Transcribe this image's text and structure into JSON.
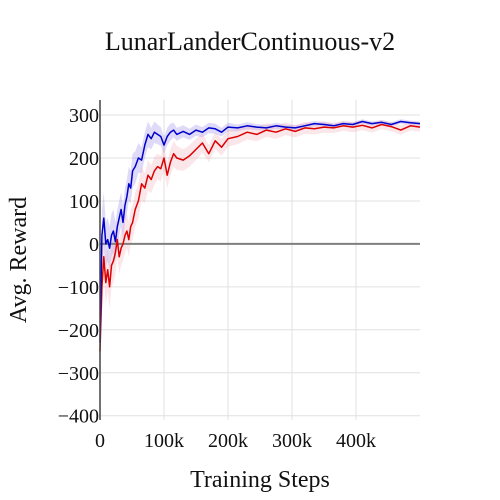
{
  "chart_data": {
    "type": "line",
    "title": "LunarLanderContinuous-v2",
    "xlabel": "Training Steps",
    "ylabel": "Avg. Reward",
    "xlim": [
      0,
      500000
    ],
    "ylim": [
      -410,
      335
    ],
    "x_ticks": [
      0,
      100000,
      200000,
      300000,
      400000
    ],
    "x_tick_labels": [
      "0",
      "100k",
      "200k",
      "300k",
      "400k"
    ],
    "y_ticks": [
      -400,
      -300,
      -200,
      -100,
      0,
      100,
      200,
      300
    ],
    "y_tick_labels": [
      "−400",
      "−300",
      "−200",
      "−100",
      "0",
      "100",
      "200",
      "300"
    ],
    "grid": true,
    "zero_line": true,
    "series": [
      {
        "color": "#0000cc",
        "band_color": "#8c7ae6",
        "x": [
          0,
          3000,
          6000,
          9000,
          12000,
          15000,
          18000,
          21000,
          24000,
          27000,
          30000,
          33000,
          36000,
          39000,
          42000,
          45000,
          48000,
          51000,
          55000,
          60000,
          65000,
          70000,
          75000,
          80000,
          85000,
          90000,
          95000,
          100000,
          105000,
          110000,
          115000,
          120000,
          130000,
          140000,
          150000,
          160000,
          170000,
          180000,
          190000,
          200000,
          215000,
          230000,
          245000,
          260000,
          275000,
          290000,
          305000,
          320000,
          335000,
          350000,
          365000,
          380000,
          395000,
          410000,
          425000,
          440000,
          455000,
          470000,
          485000,
          500000
        ],
        "y": [
          -230,
          20,
          60,
          0,
          10,
          -10,
          20,
          30,
          5,
          40,
          60,
          80,
          50,
          90,
          110,
          140,
          130,
          170,
          180,
          200,
          195,
          230,
          255,
          245,
          260,
          255,
          250,
          230,
          250,
          260,
          265,
          255,
          262,
          255,
          265,
          260,
          270,
          268,
          260,
          272,
          270,
          275,
          272,
          270,
          275,
          272,
          270,
          275,
          280,
          278,
          275,
          280,
          278,
          285,
          280,
          283,
          278,
          285,
          282,
          280
        ],
        "lower": [
          -260,
          -40,
          0,
          -50,
          -40,
          -60,
          -30,
          -20,
          -40,
          0,
          20,
          40,
          10,
          50,
          70,
          100,
          95,
          130,
          140,
          165,
          165,
          200,
          225,
          220,
          235,
          232,
          228,
          210,
          230,
          240,
          248,
          240,
          248,
          242,
          252,
          248,
          258,
          256,
          250,
          262,
          262,
          267,
          265,
          263,
          268,
          266,
          264,
          269,
          274,
          272,
          270,
          275,
          273,
          280,
          275,
          278,
          273,
          280,
          277,
          275
        ],
        "upper": [
          -200,
          80,
          120,
          50,
          60,
          40,
          70,
          80,
          50,
          80,
          100,
          120,
          90,
          130,
          150,
          180,
          170,
          210,
          215,
          235,
          225,
          260,
          285,
          270,
          285,
          278,
          272,
          250,
          270,
          280,
          282,
          270,
          276,
          268,
          278,
          272,
          282,
          280,
          270,
          282,
          278,
          283,
          279,
          277,
          282,
          278,
          276,
          281,
          286,
          284,
          280,
          285,
          283,
          290,
          285,
          288,
          283,
          290,
          287,
          285
        ]
      },
      {
        "color": "#dd0000",
        "band_color": "#f2a6b3",
        "x": [
          0,
          3000,
          6000,
          9000,
          12000,
          15000,
          18000,
          21000,
          24000,
          27000,
          30000,
          33000,
          36000,
          39000,
          42000,
          45000,
          48000,
          51000,
          55000,
          60000,
          65000,
          70000,
          75000,
          80000,
          85000,
          90000,
          95000,
          100000,
          105000,
          110000,
          115000,
          120000,
          130000,
          140000,
          150000,
          160000,
          170000,
          180000,
          190000,
          200000,
          215000,
          230000,
          245000,
          260000,
          275000,
          290000,
          305000,
          320000,
          335000,
          350000,
          365000,
          380000,
          395000,
          410000,
          425000,
          440000,
          455000,
          470000,
          485000,
          500000
        ],
        "y": [
          -250,
          -100,
          -30,
          -90,
          -60,
          -100,
          -50,
          -40,
          -20,
          10,
          -30,
          -10,
          0,
          20,
          30,
          10,
          40,
          50,
          80,
          100,
          140,
          130,
          160,
          150,
          170,
          180,
          175,
          200,
          160,
          190,
          210,
          200,
          195,
          205,
          220,
          235,
          210,
          240,
          225,
          245,
          250,
          260,
          255,
          265,
          260,
          268,
          262,
          270,
          268,
          272,
          270,
          275,
          272,
          276,
          270,
          278,
          273,
          265,
          275,
          272
        ],
        "lower": [
          -280,
          -160,
          -80,
          -140,
          -110,
          -150,
          -100,
          -90,
          -70,
          -30,
          -70,
          -50,
          -40,
          -20,
          -10,
          -30,
          0,
          10,
          40,
          60,
          100,
          95,
          125,
          118,
          138,
          150,
          145,
          170,
          130,
          160,
          180,
          172,
          170,
          180,
          195,
          212,
          190,
          220,
          205,
          226,
          232,
          243,
          239,
          249,
          245,
          253,
          248,
          256,
          255,
          259,
          258,
          263,
          260,
          265,
          259,
          267,
          262,
          254,
          264,
          261
        ],
        "upper": [
          -220,
          -40,
          20,
          -40,
          -10,
          -50,
          0,
          10,
          30,
          50,
          10,
          30,
          40,
          60,
          70,
          50,
          80,
          90,
          120,
          140,
          180,
          165,
          195,
          182,
          202,
          210,
          205,
          230,
          190,
          220,
          240,
          228,
          220,
          230,
          245,
          258,
          230,
          260,
          245,
          264,
          268,
          277,
          271,
          281,
          275,
          283,
          276,
          284,
          281,
          285,
          282,
          287,
          284,
          287,
          281,
          289,
          284,
          276,
          286,
          283
        ]
      }
    ]
  }
}
